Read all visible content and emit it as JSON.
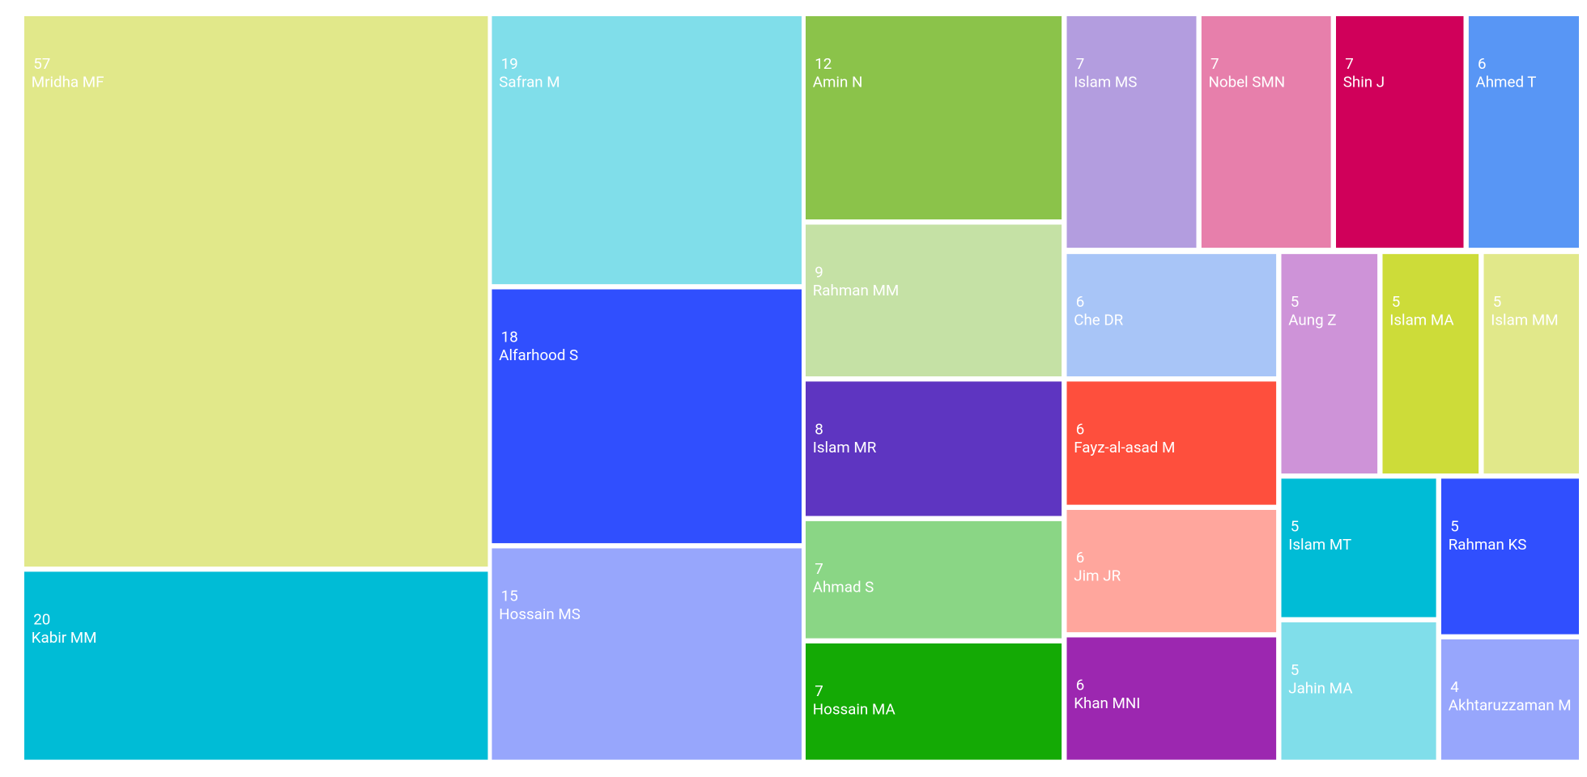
{
  "chart_data": {
    "type": "treemap",
    "categories": [
      "Mridha MF",
      "Kabir MM",
      "Safran M",
      "Alfarhood S",
      "Hossain MS",
      "Amin N",
      "Rahman MM",
      "Islam MR",
      "Ahmad S",
      "Hossain MA",
      "Islam MS",
      "Nobel SMN",
      "Shin J",
      "Ahmed T",
      "Che DR",
      "Fayz-al-asad M",
      "Jim JR",
      "Khan MNI",
      "Aung Z",
      "Islam MA",
      "Islam MM",
      "Islam MT",
      "Rahman KS",
      "Jahin MA",
      "Akhtaruzzaman M"
    ],
    "values": [
      57,
      20,
      19,
      18,
      15,
      12,
      9,
      8,
      7,
      7,
      7,
      7,
      7,
      6,
      6,
      6,
      6,
      6,
      5,
      5,
      5,
      5,
      5,
      5,
      4
    ],
    "colors": [
      "#e1e88a",
      "#00bcd6",
      "#80deea",
      "#304ffe",
      "#97a6fc",
      "#8bc34a",
      "#c5e1a5",
      "#5e35c1",
      "#8ad685",
      "#14aa05",
      "#b39ddf",
      "#e77fab",
      "#d0005a",
      "#5896f5",
      "#a8c5f7",
      "#fe4f3d",
      "#ffa69d",
      "#9c27b0",
      "#ce93d8",
      "#cddc39",
      "#e1e88a",
      "#00bcd6",
      "#304ffe",
      "#80deea",
      "#97a6fc"
    ]
  }
}
